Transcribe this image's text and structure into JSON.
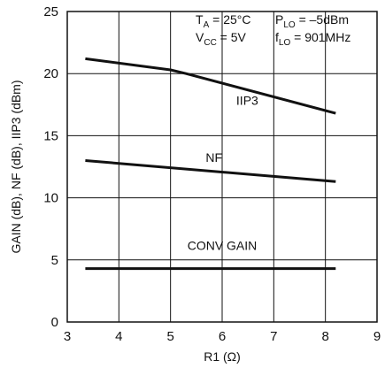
{
  "chart_data": {
    "type": "line",
    "xlabel": "R1 (Ω)",
    "ylabel": "GAIN (dB), NF (dB), IIP3 (dBm)",
    "xlim": [
      3,
      9
    ],
    "ylim": [
      0,
      25
    ],
    "x_ticks": [
      "3",
      "4",
      "5",
      "6",
      "7",
      "8",
      "9"
    ],
    "y_ticks": [
      "0",
      "5",
      "10",
      "15",
      "20",
      "25"
    ],
    "grid": true,
    "legend": "none",
    "annotations": {
      "ta": {
        "main": "T",
        "sub": "A",
        "rest": " = 25°C"
      },
      "vcc": {
        "main": "V",
        "sub": "CC",
        "rest": " = 5V"
      },
      "plo": {
        "main": "P",
        "sub": "LO",
        "rest": " = –5dBm"
      },
      "flo": {
        "main": "f",
        "sub": "LO",
        "rest": " = 901MHz"
      }
    },
    "series": [
      {
        "name": "IIP3",
        "x": [
          3.35,
          5.0,
          5.3,
          8.2
        ],
        "y": [
          21.2,
          20.3,
          20.0,
          16.8
        ]
      },
      {
        "name": "NF",
        "x": [
          3.35,
          8.2
        ],
        "y": [
          13.0,
          11.3
        ]
      },
      {
        "name": "CONV GAIN",
        "x": [
          3.35,
          8.2
        ],
        "y": [
          4.3,
          4.3
        ]
      }
    ]
  }
}
